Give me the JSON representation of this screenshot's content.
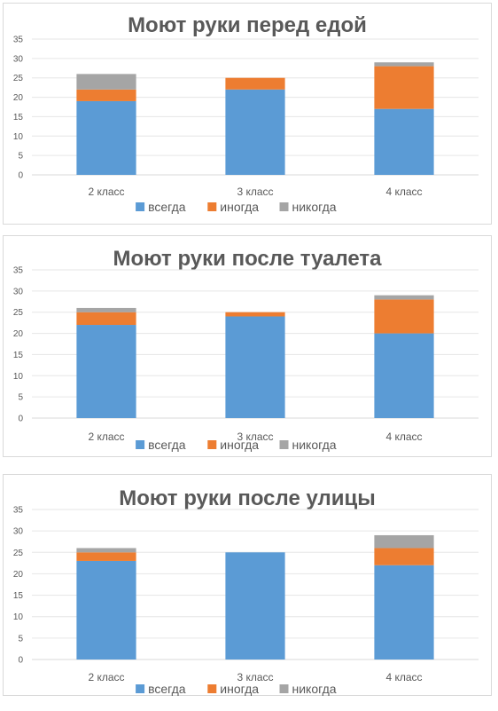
{
  "chart_data": [
    {
      "type": "bar",
      "stacked": true,
      "title": "Моют руки перед едой",
      "categories": [
        "2 класс",
        "3 класс",
        "4 класс"
      ],
      "series": [
        {
          "name": "всегда",
          "color": "#5b9bd5",
          "values": [
            19,
            22,
            17
          ]
        },
        {
          "name": "иногда",
          "color": "#ed7d31",
          "values": [
            3,
            3,
            11
          ]
        },
        {
          "name": "никогда",
          "color": "#a5a5a5",
          "values": [
            4,
            0,
            1
          ]
        }
      ],
      "ylim": [
        0,
        35
      ],
      "yticks": [
        0,
        5,
        10,
        15,
        20,
        25,
        30,
        35
      ],
      "grid": true,
      "legend": "bottom"
    },
    {
      "type": "bar",
      "stacked": true,
      "title": "Моют руки после туалета",
      "categories": [
        "2 класс",
        "3 класс",
        "4 класс"
      ],
      "series": [
        {
          "name": "всегда",
          "color": "#5b9bd5",
          "values": [
            22,
            24,
            20
          ]
        },
        {
          "name": "иногда",
          "color": "#ed7d31",
          "values": [
            3,
            1,
            8
          ]
        },
        {
          "name": "никогда",
          "color": "#a5a5a5",
          "values": [
            1,
            0,
            1
          ]
        }
      ],
      "ylim": [
        0,
        35
      ],
      "yticks": [
        0,
        5,
        10,
        15,
        20,
        25,
        30,
        35
      ],
      "grid": true,
      "legend": "bottom"
    },
    {
      "type": "bar",
      "stacked": true,
      "title": "Моют руки после улицы",
      "categories": [
        "2 класс",
        "3 класс",
        "4 класс"
      ],
      "series": [
        {
          "name": "всегда",
          "color": "#5b9bd5",
          "values": [
            23,
            25,
            22
          ]
        },
        {
          "name": "иногда",
          "color": "#ed7d31",
          "values": [
            2,
            0,
            4
          ]
        },
        {
          "name": "никогда",
          "color": "#a5a5a5",
          "values": [
            1,
            0,
            3
          ]
        }
      ],
      "ylim": [
        0,
        35
      ],
      "yticks": [
        0,
        5,
        10,
        15,
        20,
        25,
        30,
        35
      ],
      "grid": true,
      "legend": "bottom"
    }
  ]
}
